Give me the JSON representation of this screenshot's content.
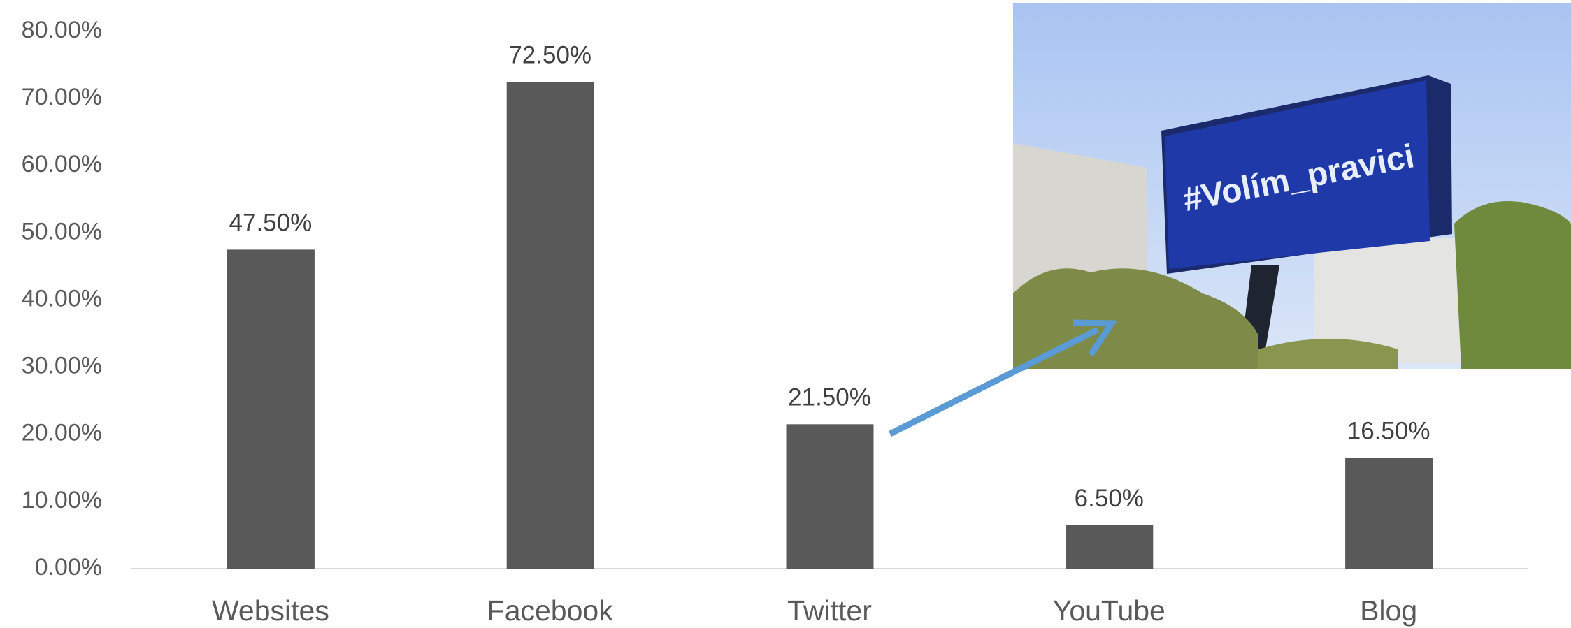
{
  "chart_data": {
    "type": "bar",
    "categories": [
      "Websites",
      "Facebook",
      "Twitter",
      "YouTube",
      "Blog"
    ],
    "values": [
      47.5,
      72.5,
      21.5,
      6.5,
      16.5
    ],
    "value_labels": [
      "47.50%",
      "72.50%",
      "21.50%",
      "6.50%",
      "16.50%"
    ],
    "color": "#595959",
    "ylim": [
      0,
      80
    ],
    "yticks": [
      {
        "value": 0,
        "label": "0.00%"
      },
      {
        "value": 10,
        "label": "10.00%"
      },
      {
        "value": 20,
        "label": "20.00%"
      },
      {
        "value": 30,
        "label": "30.00%"
      },
      {
        "value": 40,
        "label": "40.00%"
      },
      {
        "value": 50,
        "label": "50.00%"
      },
      {
        "value": 60,
        "label": "60.00%"
      },
      {
        "value": 70,
        "label": "70.00%"
      },
      {
        "value": 80,
        "label": "80.00%"
      }
    ],
    "grid": false,
    "annotation": "#Volím_pravici"
  }
}
